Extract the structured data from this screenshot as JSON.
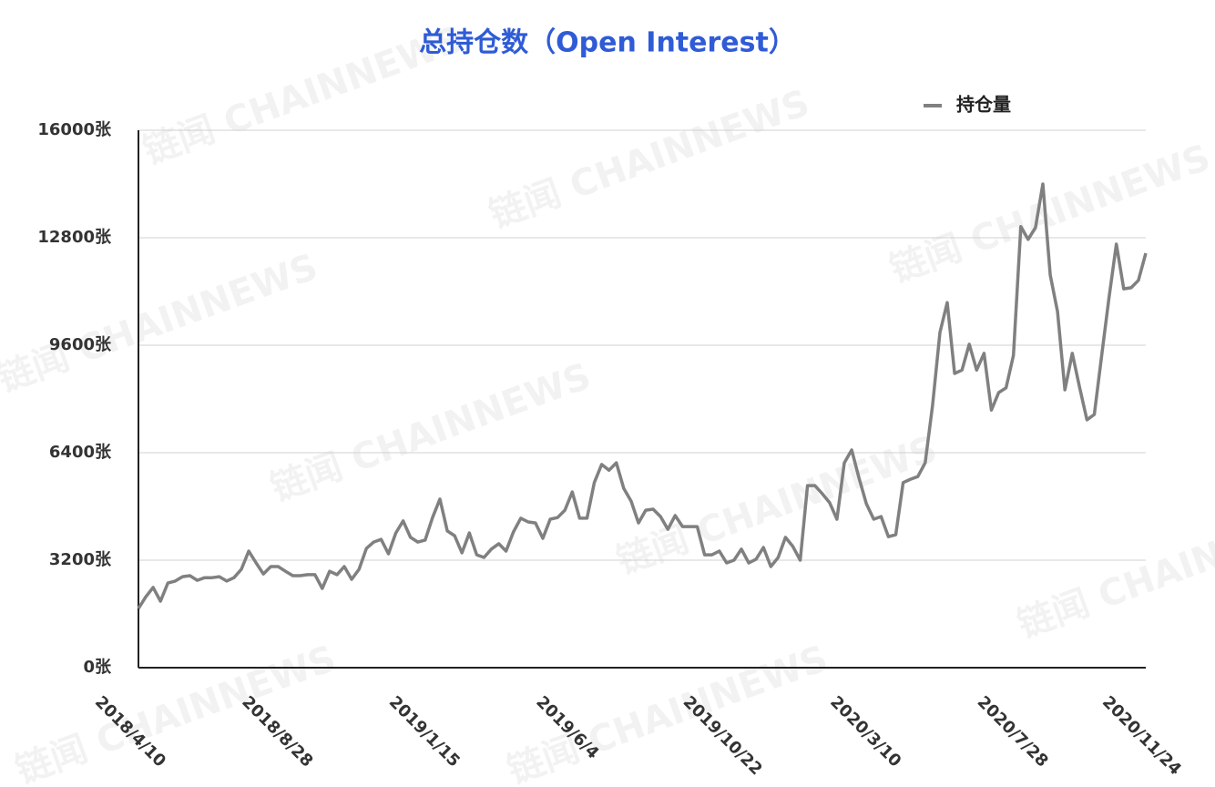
{
  "watermark": "链闻 CHAINNEWS",
  "chart_data": {
    "type": "line",
    "title": "总持仓数（Open Interest）",
    "categories": [
      "2018/4/10",
      null,
      null,
      null,
      null,
      null,
      null,
      null,
      null,
      null,
      null,
      null,
      null,
      null,
      null,
      null,
      null,
      null,
      null,
      null,
      "2018/8/28",
      null,
      null,
      null,
      null,
      null,
      null,
      null,
      null,
      null,
      null,
      null,
      null,
      null,
      null,
      null,
      null,
      null,
      null,
      null,
      "2019/1/15",
      null,
      null,
      null,
      null,
      null,
      null,
      null,
      null,
      null,
      null,
      null,
      null,
      null,
      null,
      null,
      null,
      null,
      null,
      null,
      "2019/6/4",
      null,
      null,
      null,
      null,
      null,
      null,
      null,
      null,
      null,
      null,
      null,
      null,
      null,
      null,
      null,
      null,
      null,
      null,
      null,
      "2019/10/22",
      null,
      null,
      null,
      null,
      null,
      null,
      null,
      null,
      null,
      null,
      null,
      null,
      null,
      null,
      null,
      null,
      null,
      null,
      null,
      "2020/3/10",
      null,
      null,
      null,
      null,
      null,
      null,
      null,
      null,
      null,
      null,
      null,
      null,
      null,
      null,
      null,
      null,
      null,
      null,
      null,
      "2020/7/28",
      null,
      null,
      null,
      null,
      null,
      null,
      null,
      null,
      null,
      null,
      null,
      null,
      null,
      null,
      null,
      null,
      "2020/11/24"
    ],
    "series": [
      {
        "name": "持仓量",
        "color": "#808080",
        "values": [
          1760,
          2110,
          2390,
          1980,
          2520,
          2580,
          2710,
          2740,
          2600,
          2680,
          2680,
          2710,
          2580,
          2680,
          2930,
          3470,
          3120,
          2790,
          3010,
          3010,
          2870,
          2740,
          2740,
          2770,
          2770,
          2360,
          2870,
          2770,
          3010,
          2630,
          2930,
          3550,
          3740,
          3820,
          3390,
          4010,
          4370,
          3880,
          3740,
          3800,
          4470,
          5020,
          4070,
          3930,
          3420,
          4010,
          3360,
          3280,
          3530,
          3690,
          3470,
          4040,
          4450,
          4340,
          4310,
          3850,
          4420,
          4470,
          4690,
          5230,
          4450,
          4450,
          5510,
          6050,
          5880,
          6100,
          5340,
          4960,
          4310,
          4690,
          4720,
          4500,
          4120,
          4530,
          4200,
          4200,
          4200,
          3360,
          3360,
          3470,
          3120,
          3200,
          3530,
          3120,
          3230,
          3580,
          3010,
          3280,
          3880,
          3610,
          3200,
          5420,
          5420,
          5180,
          4910,
          4420,
          6100,
          6480,
          5640,
          4880,
          4420,
          4500,
          3900,
          3960,
          5510,
          5610,
          5690,
          6100,
          7810,
          9980,
          10870,
          8760,
          8860,
          9630,
          8860,
          9360,
          7670,
          8190,
          8330,
          9300,
          13130,
          12750,
          13100,
          14400,
          11690,
          10600,
          8270,
          9360,
          8350,
          7380,
          7540,
          9300,
          11010,
          12610,
          11280,
          11310,
          11530,
          12340
        ]
      }
    ],
    "ylim": [
      0,
      16000
    ],
    "yticks": [
      {
        "value": 0,
        "label": "0张"
      },
      {
        "value": 3200,
        "label": "3200张"
      },
      {
        "value": 6400,
        "label": "6400张"
      },
      {
        "value": 9600,
        "label": "9600张"
      },
      {
        "value": 12800,
        "label": "12800张"
      },
      {
        "value": 16000,
        "label": "16000张"
      }
    ],
    "grid": true,
    "legend": "top-right"
  }
}
